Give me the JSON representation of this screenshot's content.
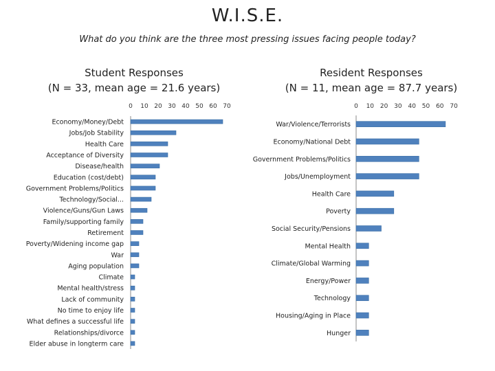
{
  "page": {
    "title": "W.I.S.E.",
    "question": "What do you think are the three most pressing issues facing people today?"
  },
  "chart_data": [
    {
      "type": "bar",
      "orientation": "horizontal",
      "title": "Student Responses",
      "subtitle": "(N = 33, mean age = 21.6 years)",
      "xlim": [
        0,
        70
      ],
      "ticks": [
        0,
        10,
        20,
        30,
        40,
        50,
        60,
        70
      ],
      "bar_color": "#4f81bd",
      "categories": [
        "Economy/Money/Debt",
        "Jobs/Job Stability",
        "Health Care",
        "Acceptance of Diversity",
        "Disease/health",
        "Education (cost/debt)",
        "Government Problems/Politics",
        "Technology/Social...",
        "Violence/Guns/Gun Laws",
        "Family/supporting family",
        "Retirement",
        "Poverty/Widening income gap",
        "War",
        "Aging population",
        "Climate",
        "Mental health/stress",
        "Lack of community",
        "No time to enjoy life",
        "What defines a successful life",
        "Relationships/divorce",
        "Elder abuse in longterm care"
      ],
      "values": [
        67,
        33,
        27,
        27,
        21,
        18,
        18,
        15,
        12,
        9,
        9,
        6,
        6,
        6,
        3,
        3,
        3,
        3,
        3,
        3,
        3
      ]
    },
    {
      "type": "bar",
      "orientation": "horizontal",
      "title": "Resident Responses",
      "subtitle": "(N = 11, mean age = 87.7 years)",
      "xlim": [
        0,
        70
      ],
      "ticks": [
        0,
        10,
        20,
        30,
        40,
        50,
        60,
        70
      ],
      "bar_color": "#4f81bd",
      "categories": [
        "War/Violence/Terrorists",
        "Economy/National Debt",
        "Government Problems/Politics",
        "Jobs/Unemployment",
        "Health Care",
        "Poverty",
        "Social Security/Pensions",
        "Mental Health",
        "Climate/Global Warming",
        "Energy/Power",
        "Technology",
        "Housing/Aging in Place",
        "Hunger"
      ],
      "values": [
        64,
        45,
        45,
        45,
        27,
        27,
        18,
        9,
        9,
        9,
        9,
        9,
        9
      ]
    }
  ]
}
